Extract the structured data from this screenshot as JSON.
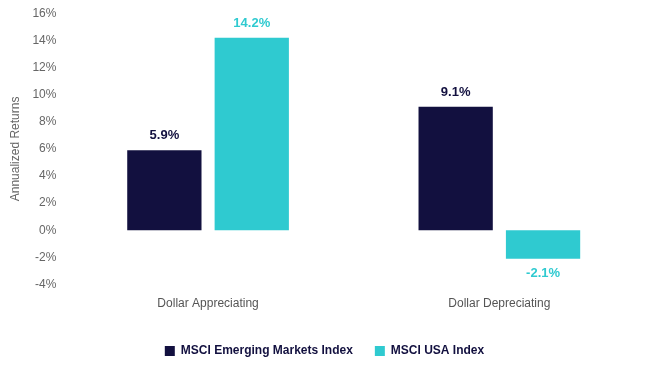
{
  "chart_data": {
    "type": "bar",
    "y_label": "Annualized Returns",
    "categories": [
      "Dollar Appreciating",
      "Dollar Depreciating"
    ],
    "series": [
      {
        "name": "MSCI Emerging Markets Index",
        "color": "#12103f",
        "values": [
          5.9,
          9.1
        ],
        "value_labels": [
          "5.9%",
          "9.1%"
        ]
      },
      {
        "name": "MSCI USA Index",
        "color": "#2fcad0",
        "values": [
          14.2,
          -2.1
        ],
        "value_labels": [
          "14.2%",
          "-2.1%"
        ]
      }
    ],
    "ylim": [
      -4,
      16
    ],
    "yticks": [
      {
        "value": -4,
        "label": "-4%"
      },
      {
        "value": -2,
        "label": "-2%"
      },
      {
        "value": 0,
        "label": "0%"
      },
      {
        "value": 2,
        "label": "2%"
      },
      {
        "value": 4,
        "label": "4%"
      },
      {
        "value": 6,
        "label": "6%"
      },
      {
        "value": 8,
        "label": "8%"
      },
      {
        "value": 10,
        "label": "10%"
      },
      {
        "value": 12,
        "label": "12%"
      },
      {
        "value": 14,
        "label": "14%"
      },
      {
        "value": 16,
        "label": "16%"
      }
    ],
    "grid": false,
    "legend": "bottom",
    "data_labels": true
  }
}
